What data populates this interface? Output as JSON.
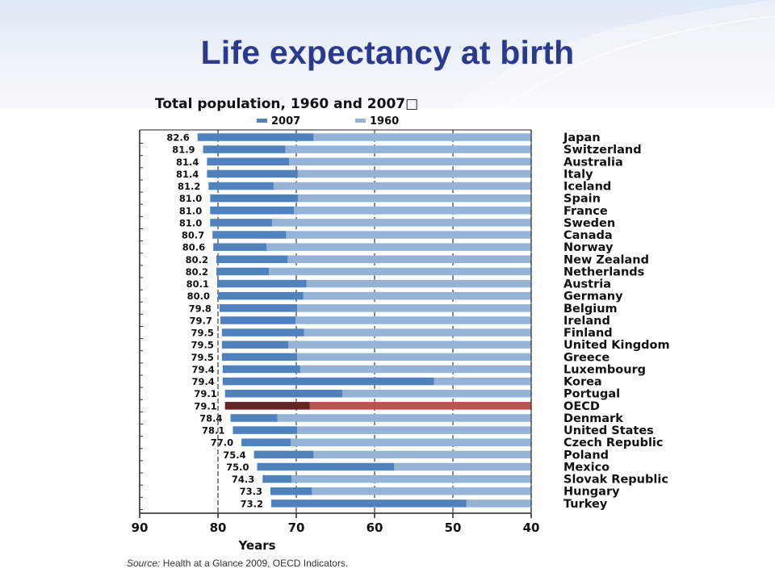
{
  "slide_title": "Life expectancy at birth",
  "source_label": "Source:",
  "source_text": "Health at a Glance 2009, OECD Indicators.",
  "colors": {
    "bar_2007": "#4f81bd",
    "bar_1960": "#95b3d7",
    "oecd_2007": "#632423",
    "oecd_1960": "#c0504d",
    "title": "#2b3a8c"
  },
  "chart_data": {
    "type": "bar",
    "orientation": "horizontal",
    "title": "Total population, 1960 and 2007□",
    "xlabel": "Years",
    "ylabel": "",
    "xlim": [
      90,
      40
    ],
    "xticks": [
      90,
      80,
      70,
      60,
      50,
      40
    ],
    "grid": true,
    "legend_position": "top",
    "series": [
      {
        "name": "2007",
        "values": [
          82.6,
          81.9,
          81.4,
          81.4,
          81.2,
          81.0,
          81.0,
          81.0,
          80.7,
          80.6,
          80.2,
          80.2,
          80.1,
          80.0,
          79.8,
          79.7,
          79.5,
          79.5,
          79.5,
          79.4,
          79.4,
          79.1,
          79.1,
          78.4,
          78.1,
          77.0,
          75.4,
          75.0,
          74.3,
          73.3,
          73.2
        ]
      },
      {
        "name": "1960",
        "values": [
          67.8,
          71.4,
          70.9,
          69.8,
          72.9,
          69.8,
          70.3,
          73.1,
          71.3,
          73.8,
          71.1,
          73.5,
          68.7,
          69.1,
          69.9,
          70.1,
          69.0,
          71.0,
          69.9,
          69.5,
          52.4,
          64.1,
          68.3,
          72.4,
          69.9,
          70.7,
          67.8,
          57.5,
          70.6,
          68.0,
          48.3
        ]
      }
    ],
    "labels": [
      "82.6",
      "81.9",
      "81.4",
      "81.4",
      "81.2",
      "81.0",
      "81.0",
      "81.0",
      "80.7",
      "80.6",
      "80.2",
      "80.2",
      "80.1",
      "80.0",
      "79.8",
      "79.7",
      "79.5",
      "79.5",
      "79.5",
      "79.4",
      "79.4",
      "79.1",
      "79.1",
      "78.4",
      "78.1",
      "77.0",
      "75.4",
      "75.0",
      "74.3",
      "73.3",
      "73.2"
    ],
    "categories": [
      "Japan",
      "Switzerland",
      "Australia",
      "Italy",
      "Iceland",
      "Spain",
      "France",
      "Sweden",
      "Canada",
      "Norway",
      "New Zealand",
      "Netherlands",
      "Austria",
      "Germany",
      "Belgium",
      "Ireland",
      "Finland",
      "United Kingdom",
      "Greece",
      "Luxembourg",
      "Korea",
      "Portugal",
      "OECD",
      "Denmark",
      "United States",
      "Czech Republic",
      "Poland",
      "Mexico",
      "Slovak Republic",
      "Hungary",
      "Turkey"
    ],
    "highlight_category": "OECD"
  }
}
